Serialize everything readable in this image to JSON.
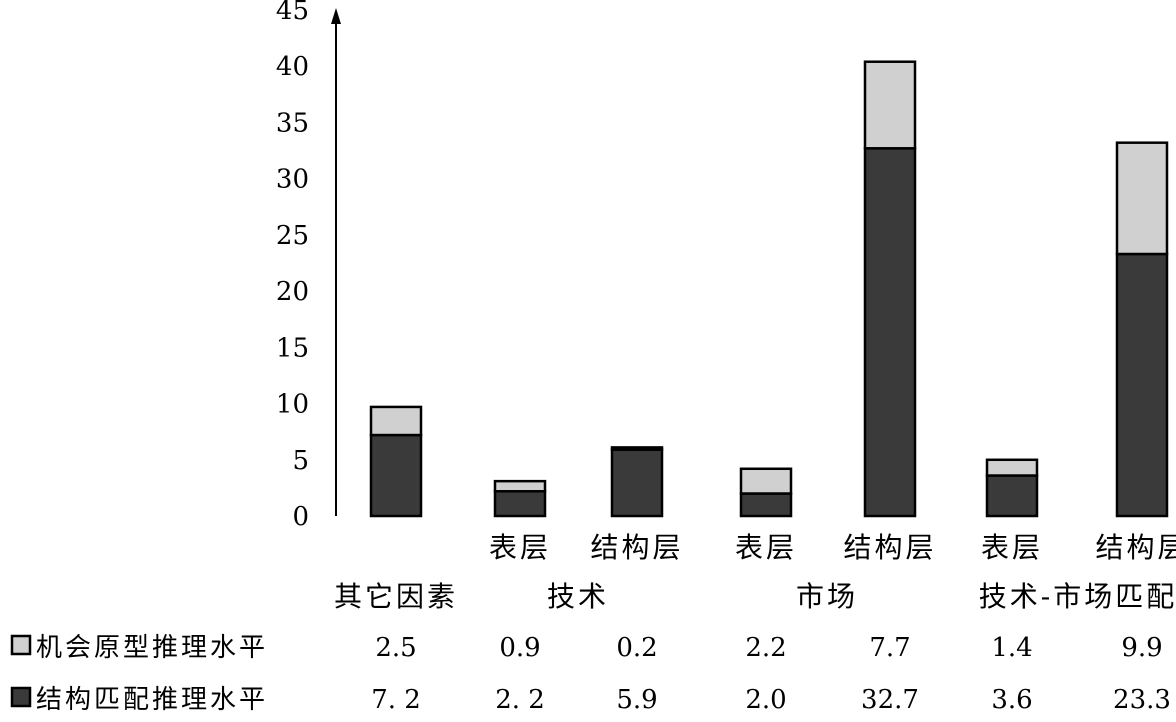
{
  "chart_data": {
    "type": "bar",
    "stacked": true,
    "ylim": [
      0,
      45
    ],
    "yticks": [
      "0",
      "5",
      "10",
      "15",
      "20",
      "25",
      "30",
      "35",
      "40",
      "45"
    ],
    "categories": [
      {
        "sub": "",
        "group": "其它因素"
      },
      {
        "sub": "表层",
        "group": "技术"
      },
      {
        "sub": "结构层",
        "group": "技术"
      },
      {
        "sub": "表层",
        "group": "市场"
      },
      {
        "sub": "结构层",
        "group": "市场"
      },
      {
        "sub": "表层",
        "group": "技术-市场匹配"
      },
      {
        "sub": "结构层",
        "group": "技术-市场匹配"
      }
    ],
    "group_labels": [
      "其它因素",
      "技术",
      "市场",
      "技术-市场匹配"
    ],
    "series": [
      {
        "name": "结构匹配推理水平",
        "color": "#3a3a3a",
        "values": [
          7.2,
          2.2,
          5.9,
          2.0,
          32.7,
          3.6,
          23.3
        ],
        "value_labels": [
          "7. 2",
          "2. 2",
          "5.9",
          "2.0",
          "32.7",
          "3.6",
          "23.3"
        ]
      },
      {
        "name": "机会原型推理水平",
        "color": "#d0d0d0",
        "values": [
          2.5,
          0.9,
          0.2,
          2.2,
          7.7,
          1.4,
          9.9
        ],
        "value_labels": [
          "2.5",
          "0.9",
          "0.2",
          "2.2",
          "7.7",
          "1.4",
          "9.9"
        ]
      }
    ],
    "grid": false,
    "legend": "data-table-below"
  }
}
